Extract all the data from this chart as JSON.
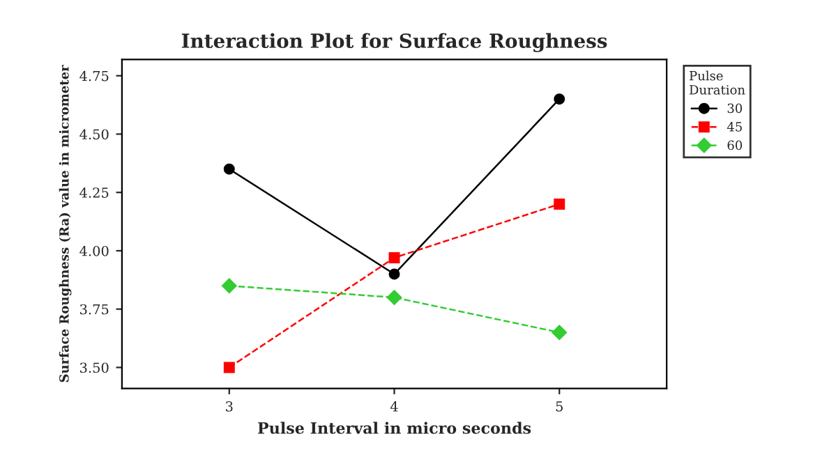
{
  "chart_data": {
    "type": "line",
    "title": "Interaction Plot for Surface Roughness",
    "xlabel": "Pulse Interval in micro seconds",
    "ylabel": "Surface Roughness (Ra) value in micrometer",
    "legend_title": "Pulse\nDuration",
    "x": [
      3,
      4,
      5
    ],
    "series": [
      {
        "name": "30",
        "color": "#000000",
        "values": [
          4.35,
          3.9,
          4.65
        ],
        "marker": "circle",
        "line_style": "solid"
      },
      {
        "name": "45",
        "color": "#ff0000",
        "values": [
          3.5,
          3.97,
          4.2
        ],
        "marker": "square",
        "line_style": "dashed"
      },
      {
        "name": "60",
        "color": "#33cc33",
        "values": [
          3.85,
          3.8,
          3.65
        ],
        "marker": "diamond",
        "line_style": "dashed"
      }
    ],
    "xlim": [
      2.35,
      5.65
    ],
    "xticks": [
      3,
      4,
      5
    ],
    "ylim": [
      3.41,
      4.82
    ],
    "yticks": [
      {
        "value": 3.5,
        "label": "3.50"
      },
      {
        "value": 3.75,
        "label": "3.75"
      },
      {
        "value": 4.0,
        "label": "4.00"
      },
      {
        "value": 4.25,
        "label": "4.25"
      },
      {
        "value": 4.5,
        "label": "4.50"
      },
      {
        "value": 4.75,
        "label": "4.75"
      }
    ],
    "grid": false,
    "legend": "right"
  }
}
